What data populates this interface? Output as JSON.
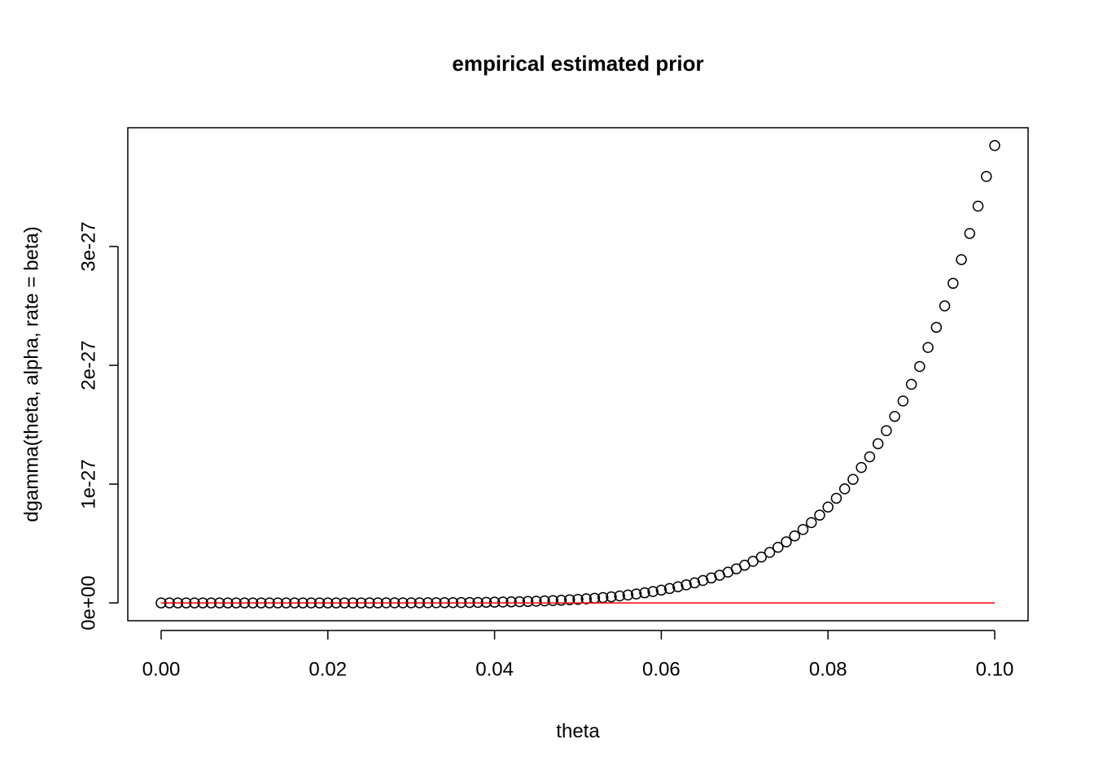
{
  "chart_data": {
    "type": "scatter",
    "title": "empirical estimated prior",
    "x_label": "theta",
    "y_label": "dgamma(theta, alpha, rate = beta)",
    "xlim": [
      -0.004,
      0.104
    ],
    "ylim": [
      -1.5e-28,
      4e-27
    ],
    "xticks": [
      {
        "value": 0,
        "label": "0.00"
      },
      {
        "value": 0.02,
        "label": "0.02"
      },
      {
        "value": 0.04,
        "label": "0.04"
      },
      {
        "value": 0.06,
        "label": "0.06"
      },
      {
        "value": 0.08,
        "label": "0.08"
      },
      {
        "value": 0.1,
        "label": "0.10"
      }
    ],
    "yticks": [
      {
        "value": 0,
        "label": "0e+00"
      },
      {
        "value": 1e-27,
        "label": "1e-27"
      },
      {
        "value": 2e-27,
        "label": "2e-27"
      },
      {
        "value": 3e-27,
        "label": "3e-27"
      }
    ],
    "grid": false,
    "series": [
      {
        "style": "points",
        "color": "#000000",
        "x": [
          0,
          0.001,
          0.002,
          0.003,
          0.004,
          0.005,
          0.006,
          0.007,
          0.008,
          0.009,
          0.01,
          0.011,
          0.012,
          0.013,
          0.014,
          0.015,
          0.016,
          0.017,
          0.018,
          0.019,
          0.02,
          0.021,
          0.022,
          0.023,
          0.024,
          0.025,
          0.026,
          0.027,
          0.028,
          0.029,
          0.03,
          0.031,
          0.032,
          0.033,
          0.034,
          0.035,
          0.036,
          0.037,
          0.038,
          0.039,
          0.04,
          0.041,
          0.042,
          0.043,
          0.044,
          0.045,
          0.046,
          0.047,
          0.048,
          0.049,
          0.05,
          0.051,
          0.052,
          0.053,
          0.054,
          0.055,
          0.056,
          0.057,
          0.058,
          0.059,
          0.06,
          0.061,
          0.062,
          0.063,
          0.064,
          0.065,
          0.066,
          0.067,
          0.068,
          0.069,
          0.07,
          0.071,
          0.072,
          0.073,
          0.074,
          0.075,
          0.076,
          0.077,
          0.078,
          0.079,
          0.08,
          0.081,
          0.082,
          0.083,
          0.084,
          0.085,
          0.086,
          0.087,
          0.088,
          0.089,
          0.09,
          0.091,
          0.092,
          0.093,
          0.094,
          0.095,
          0.096,
          0.097,
          0.098,
          0.099,
          0.1
        ],
        "values": [
          0,
          3.85e-41,
          4.93e-39,
          8.42e-38,
          6.31e-37,
          3.01e-36,
          1.08e-35,
          3.17e-35,
          8.07e-35,
          1.84e-34,
          3.85e-34,
          7.5e-34,
          1.38e-33,
          2.42e-33,
          4.06e-33,
          6.58e-33,
          1.03e-32,
          1.58e-32,
          2.36e-32,
          3.44e-32,
          4.93e-32,
          6.93e-32,
          9.6e-32,
          1.31e-31,
          1.77e-31,
          2.35e-31,
          3.09e-31,
          4.03e-31,
          5.19e-31,
          6.64e-31,
          8.42e-31,
          1.06e-30,
          1.32e-30,
          1.64e-30,
          2.02e-30,
          2.48e-30,
          3.02e-30,
          3.65e-30,
          4.4e-30,
          5.28e-30,
          6.31e-30,
          7.5e-30,
          8.88e-30,
          1.05e-29,
          1.23e-29,
          1.44e-29,
          1.68e-29,
          1.95e-29,
          2.26e-29,
          2.61e-29,
          3.01e-29,
          3.45e-29,
          3.96e-29,
          4.52e-29,
          5.15e-29,
          5.86e-29,
          6.65e-29,
          7.53e-29,
          8.5e-29,
          9.58e-29,
          1.08e-28,
          1.21e-28,
          1.36e-28,
          1.52e-28,
          1.69e-28,
          1.89e-28,
          2.1e-28,
          2.33e-28,
          2.59e-28,
          2.87e-28,
          3.17e-28,
          3.5e-28,
          3.86e-28,
          4.25e-28,
          4.68e-28,
          5.14e-28,
          5.64e-28,
          6.18e-28,
          6.76e-28,
          7.39e-28,
          8.07e-28,
          8.81e-28,
          9.6e-28,
          1.04e-27,
          1.14e-27,
          1.23e-27,
          1.34e-27,
          1.45e-27,
          1.57e-27,
          1.7e-27,
          1.84e-27,
          1.99e-27,
          2.15e-27,
          2.32e-27,
          2.5e-27,
          2.69e-27,
          2.89e-27,
          3.11e-27,
          3.34e-27,
          3.59e-27,
          3.85e-27
        ]
      },
      {
        "style": "line",
        "color": "#ff0000",
        "x": [
          0,
          0.1
        ],
        "values": [
          0,
          0
        ]
      }
    ]
  }
}
